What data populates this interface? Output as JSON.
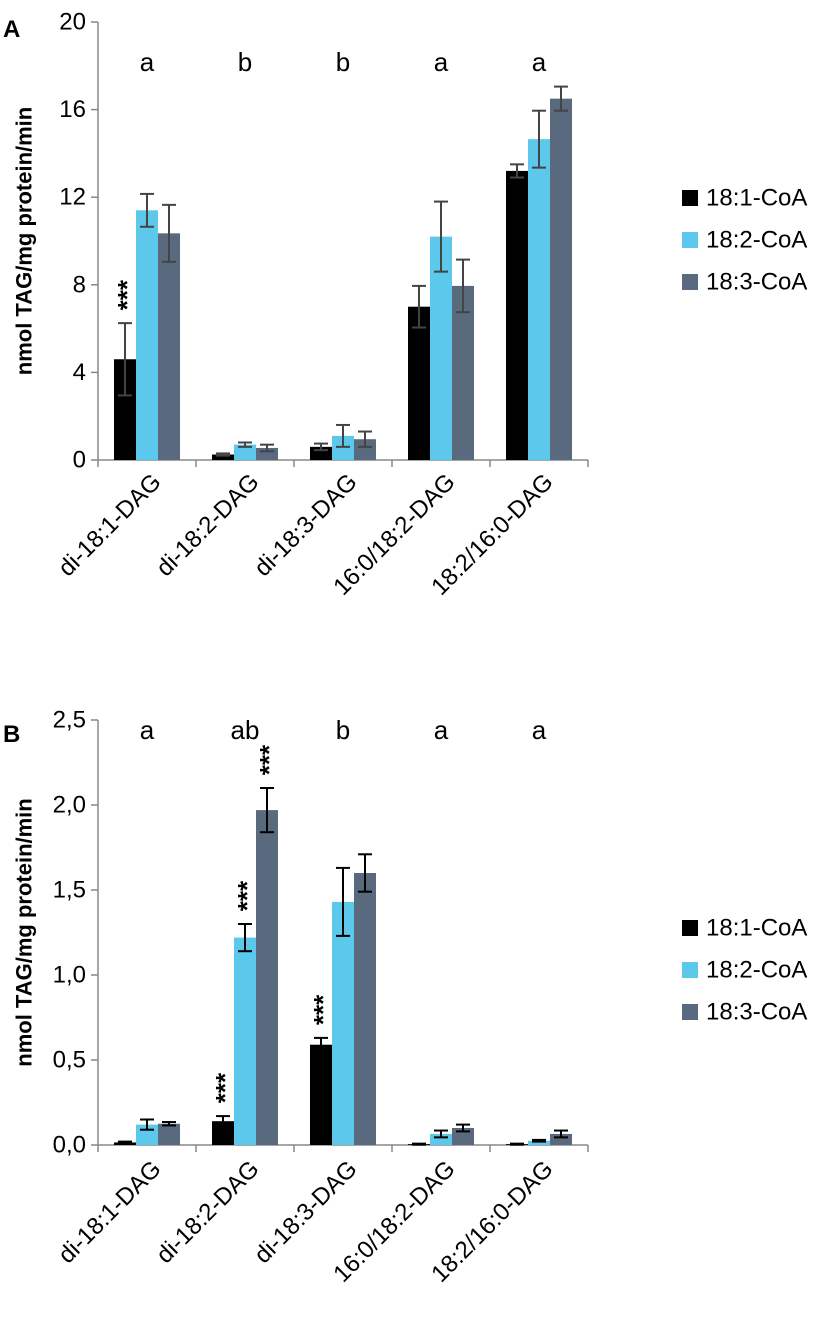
{
  "colors": {
    "s1": "#000000",
    "s2": "#5bc8ec",
    "s3": "#5a6a7e"
  },
  "chart_data": [
    {
      "type": "bar",
      "panel": "A",
      "categories": [
        "di-18:1-DAG",
        "di-18:2-DAG",
        "di-18:3-DAG",
        "16:0/18:2-DAG",
        "18:2/16:0-DAG"
      ],
      "series": [
        {
          "name": "18:1-CoA",
          "values": [
            4.6,
            0.25,
            0.6,
            7.0,
            13.2
          ],
          "errors": [
            1.65,
            0.05,
            0.15,
            0.95,
            0.3
          ]
        },
        {
          "name": "18:2-CoA",
          "values": [
            11.4,
            0.7,
            1.1,
            10.2,
            14.65
          ],
          "errors": [
            0.75,
            0.1,
            0.5,
            1.6,
            1.3
          ]
        },
        {
          "name": "18:3-CoA",
          "values": [
            10.35,
            0.55,
            0.95,
            7.95,
            16.5
          ],
          "errors": [
            1.3,
            0.15,
            0.35,
            1.2,
            0.55
          ]
        }
      ],
      "xlabel": "",
      "ylabel": "nmol TAG/mg protein/min",
      "ylim": [
        0,
        20
      ],
      "yticks": [
        "0",
        "4",
        "8",
        "12",
        "16",
        "20"
      ],
      "significance_letters": [
        "a",
        "b",
        "b",
        "a",
        "a"
      ],
      "stars": [
        {
          "category": 0,
          "series": 0,
          "text": "***"
        }
      ]
    },
    {
      "type": "bar",
      "panel": "B",
      "categories": [
        "di-18:1-DAG",
        "di-18:2-DAG",
        "di-18:3-DAG",
        "16:0/18:2-DAG",
        "18:2/16:0-DAG"
      ],
      "series": [
        {
          "name": "18:1-CoA",
          "values": [
            0.015,
            0.14,
            0.59,
            0.005,
            0.005
          ],
          "errors": [
            0.005,
            0.03,
            0.04,
            0.003,
            0.003
          ]
        },
        {
          "name": "18:2-CoA",
          "values": [
            0.12,
            1.22,
            1.43,
            0.065,
            0.025
          ],
          "errors": [
            0.03,
            0.08,
            0.2,
            0.02,
            0.005
          ]
        },
        {
          "name": "18:3-CoA",
          "values": [
            0.125,
            1.97,
            1.6,
            0.1,
            0.065
          ],
          "errors": [
            0.01,
            0.13,
            0.11,
            0.02,
            0.02
          ]
        }
      ],
      "xlabel": "",
      "ylabel": "nmol TAG/mg protein/min",
      "ylim": [
        0,
        2.5
      ],
      "yticks": [
        "0,0",
        "0,5",
        "1,0",
        "1,5",
        "2,0",
        "2,5"
      ],
      "significance_letters": [
        "a",
        "ab",
        "b",
        "a",
        "a"
      ],
      "stars": [
        {
          "category": 1,
          "series": 0,
          "text": "***"
        },
        {
          "category": 1,
          "series": 1,
          "text": "***"
        },
        {
          "category": 1,
          "series": 2,
          "text": "***"
        },
        {
          "category": 2,
          "series": 0,
          "text": "***"
        }
      ]
    }
  ]
}
